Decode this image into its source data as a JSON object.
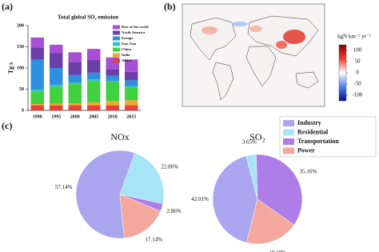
{
  "chart_data": [
    {
      "type": "bar",
      "panel_label": "(a)",
      "title": "Total global SO₂ emission",
      "y_label": "Tg s",
      "categories": [
        "1990",
        "1995",
        "2000",
        "2005",
        "2010",
        "2015"
      ],
      "stacked": true,
      "ylim": [
        0,
        200
      ],
      "yticks": [
        0,
        50,
        100,
        150,
        200
      ],
      "series": [
        {
          "name": "Africa",
          "color": "#e8413c",
          "values": [
            12,
            12,
            12,
            12,
            12,
            12
          ]
        },
        {
          "name": "India",
          "color": "#f7a531",
          "values": [
            3,
            4,
            5,
            7,
            10,
            12
          ]
        },
        {
          "name": "China",
          "color": "#3fd13f",
          "values": [
            30,
            40,
            45,
            50,
            45,
            30
          ]
        },
        {
          "name": "East Asia",
          "color": "#35c7b4",
          "values": [
            4,
            4,
            4,
            4,
            3,
            3
          ]
        },
        {
          "name": "Europe",
          "color": "#2e8fe0",
          "values": [
            71,
            40,
            18,
            16,
            12,
            14
          ]
        },
        {
          "name": "North America",
          "color": "#6b3fa8",
          "values": [
            28,
            35,
            30,
            30,
            15,
            20
          ]
        },
        {
          "name": "Rest of the world",
          "color": "#a64fd6",
          "values": [
            24,
            20,
            23,
            26,
            28,
            29
          ]
        }
      ]
    },
    {
      "type": "map",
      "panel_label": "(b)",
      "colorbar": {
        "label": "kgN km⁻² yr⁻¹",
        "lim": [
          -125,
          125
        ],
        "ticks": [
          100,
          50,
          0,
          -50,
          -100
        ]
      }
    },
    {
      "type": "pie",
      "panel_label": "(c)",
      "title": "NOx",
      "categories": [
        "Industry",
        "Residential",
        "Transportation",
        "Power"
      ],
      "colors": [
        "#a9a6ef",
        "#a6e4f7",
        "#ad7de8",
        "#f4a79c"
      ],
      "values": [
        57.14,
        22.86,
        2.86,
        17.14
      ],
      "value_labels": [
        "57.14%",
        "22.86%",
        "2.86%",
        "17.14%"
      ]
    },
    {
      "type": "pie",
      "title": "SO₂",
      "categories": [
        "Industry",
        "Residential",
        "Transportation",
        "Power"
      ],
      "colors": [
        "#a9a6ef",
        "#a6e4f7",
        "#ad7de8",
        "#f4a79c"
      ],
      "values": [
        42.01,
        3.65,
        35.16,
        19.18
      ],
      "value_labels": [
        "42.01%",
        "3.65%",
        "35.16%",
        "19.18%"
      ],
      "legend": true
    }
  ]
}
